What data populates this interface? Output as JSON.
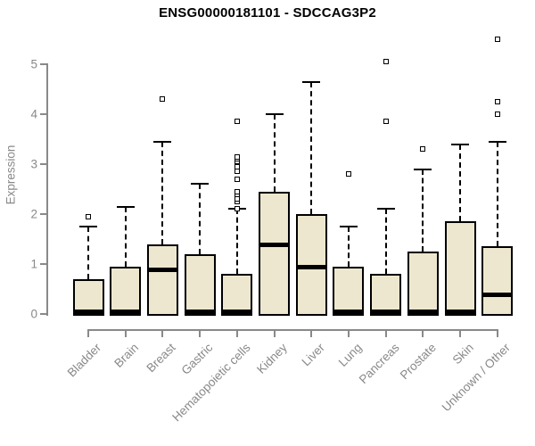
{
  "figure": {
    "title": "ENSG00000181101 - SDCCAG3P2",
    "background": "#ffffff"
  },
  "colors": {
    "box_fill": "#ece7ce",
    "box_border": "#000000",
    "median": "#000000",
    "axis": "#898989",
    "title_text": "#000000"
  },
  "chart_data": {
    "type": "boxplot",
    "title": "ENSG00000181101 - SDCCAG3P2",
    "xlabel": "",
    "ylabel": "Expression",
    "ylim": [
      0,
      5
    ],
    "yticks": [
      "0",
      "1",
      "2",
      "3",
      "4",
      "5"
    ],
    "grid": false,
    "legend": null,
    "categories": [
      "Bladder",
      "Brain",
      "Breast",
      "Gastric",
      "Hematopoietic cells",
      "Kidney",
      "Liver",
      "Lung",
      "Pancreas",
      "Prostate",
      "Skin",
      "Unknown / Other"
    ],
    "boxes": [
      {
        "category": "Bladder",
        "q1": 0,
        "median": 0.05,
        "q3": 0.7,
        "whisker_low": 0,
        "whisker_high": 1.75,
        "outliers": [
          1.95
        ]
      },
      {
        "category": "Brain",
        "q1": 0,
        "median": 0.05,
        "q3": 0.95,
        "whisker_low": 0,
        "whisker_high": 2.15,
        "outliers": []
      },
      {
        "category": "Breast",
        "q1": 0,
        "median": 0.9,
        "q3": 1.4,
        "whisker_low": 0,
        "whisker_high": 3.45,
        "outliers": [
          4.3
        ]
      },
      {
        "category": "Gastric",
        "q1": 0,
        "median": 0.05,
        "q3": 1.2,
        "whisker_low": 0,
        "whisker_high": 2.6,
        "outliers": []
      },
      {
        "category": "Hematopoietic cells",
        "q1": 0,
        "median": 0.05,
        "q3": 0.8,
        "whisker_low": 0,
        "whisker_high": 2.1,
        "outliers": [
          2.1,
          2.25,
          2.3,
          2.4,
          2.45,
          2.7,
          2.85,
          2.95,
          3.05,
          3.1,
          3.15,
          3.85
        ]
      },
      {
        "category": "Kidney",
        "q1": 0,
        "median": 1.4,
        "q3": 2.45,
        "whisker_low": 0,
        "whisker_high": 4.0,
        "outliers": []
      },
      {
        "category": "Liver",
        "q1": 0,
        "median": 0.95,
        "q3": 2.0,
        "whisker_low": 0,
        "whisker_high": 4.65,
        "outliers": []
      },
      {
        "category": "Lung",
        "q1": 0,
        "median": 0.05,
        "q3": 0.95,
        "whisker_low": 0,
        "whisker_high": 1.75,
        "outliers": [
          2.8
        ]
      },
      {
        "category": "Pancreas",
        "q1": 0,
        "median": 0.05,
        "q3": 0.8,
        "whisker_low": 0,
        "whisker_high": 2.1,
        "outliers": [
          3.85,
          5.05
        ]
      },
      {
        "category": "Prostate",
        "q1": 0,
        "median": 0.05,
        "q3": 1.25,
        "whisker_low": 0,
        "whisker_high": 2.9,
        "outliers": [
          3.3
        ]
      },
      {
        "category": "Skin",
        "q1": 0,
        "median": 0.05,
        "q3": 1.85,
        "whisker_low": 0,
        "whisker_high": 3.4,
        "outliers": []
      },
      {
        "category": "Unknown / Other",
        "q1": 0,
        "median": 0.4,
        "q3": 1.35,
        "whisker_low": 0,
        "whisker_high": 3.45,
        "outliers": [
          4.0,
          4.25,
          5.5
        ]
      }
    ]
  }
}
